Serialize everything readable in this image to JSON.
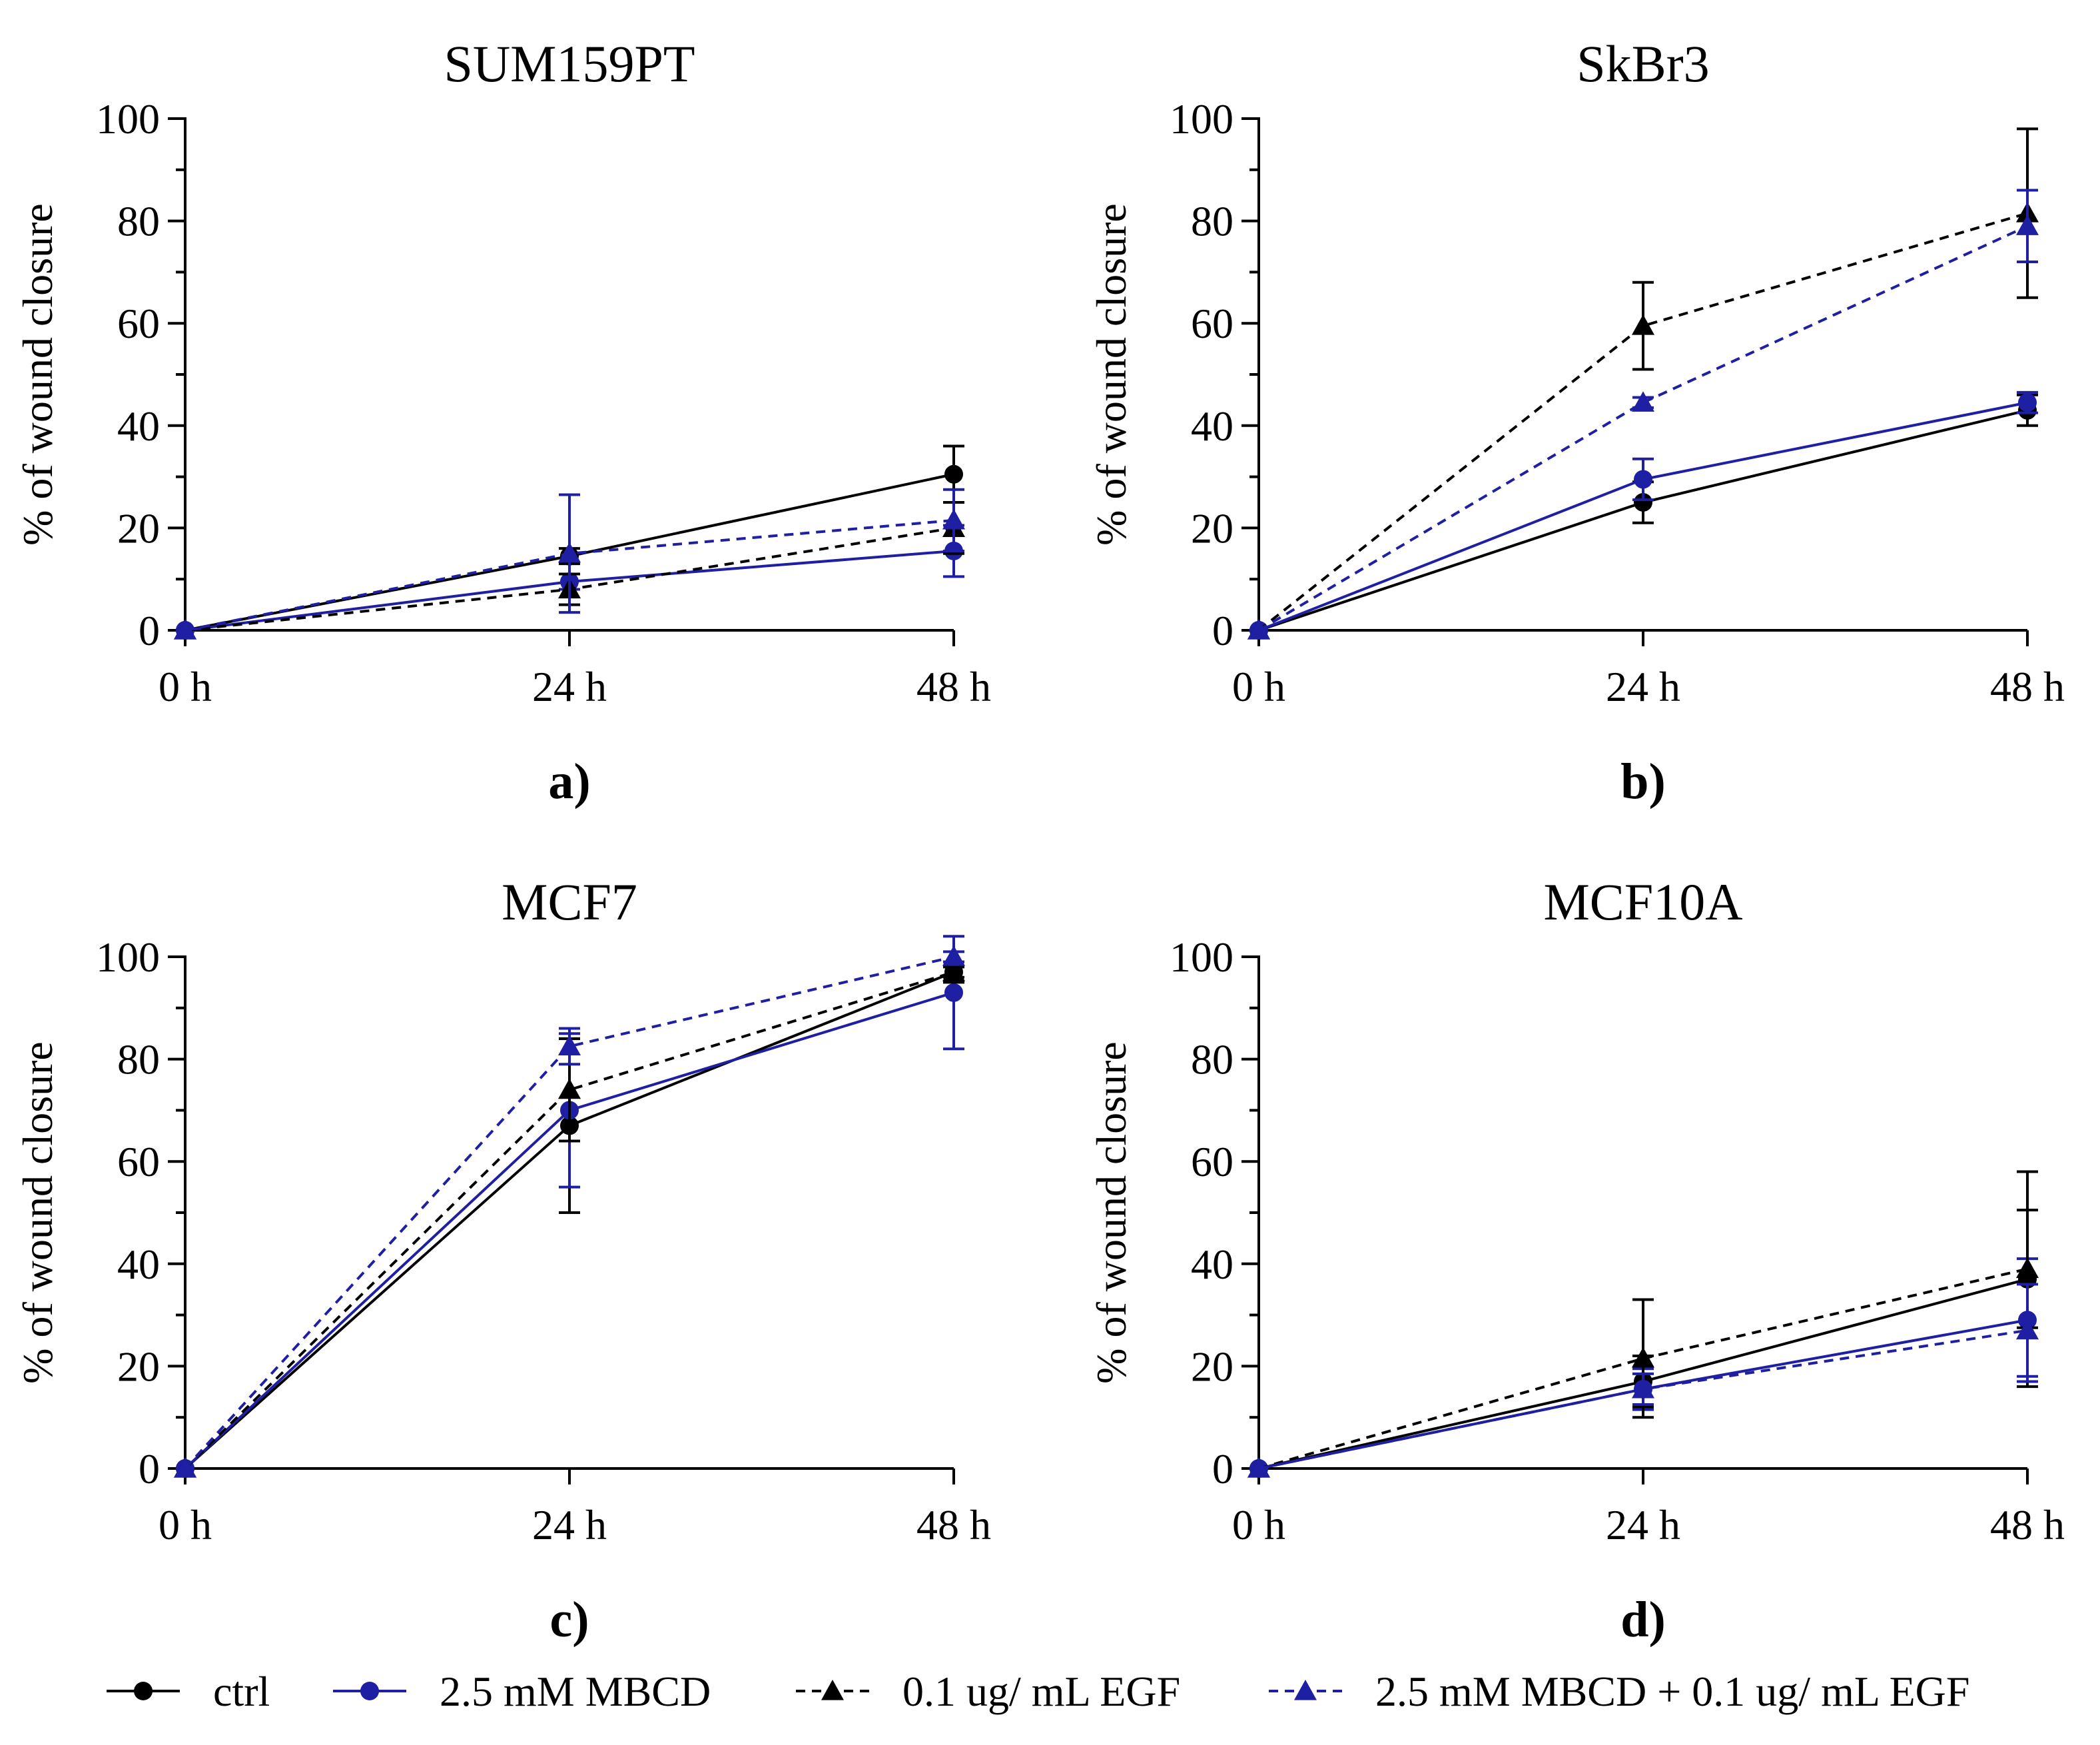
{
  "series_styles": [
    {
      "color": "#000000",
      "marker": "circle",
      "dashed": false
    },
    {
      "color": "#1f1fa3",
      "marker": "circle",
      "dashed": false
    },
    {
      "color": "#000000",
      "marker": "triangle",
      "dashed": true
    },
    {
      "color": "#1f1fa3",
      "marker": "triangle",
      "dashed": true
    }
  ],
  "legend": [
    "ctrl",
    "2.5 mM MBCD",
    "0.1 ug/ mL EGF",
    "2.5 mM MBCD + 0.1 ug/ mL EGF"
  ],
  "chart_data": [
    {
      "type": "line",
      "title": "SUM159PT",
      "panel_label": "a)",
      "xlabel": "",
      "ylabel": "% of wound closure",
      "categories": [
        "0 h",
        "24 h",
        "48 h"
      ],
      "yticks": [
        "0",
        "20",
        "40",
        "60",
        "80",
        "100"
      ],
      "ylim": [
        0,
        100
      ],
      "series": [
        {
          "name": "ctrl",
          "values": [
            0,
            14.5,
            30.5
          ],
          "errors": [
            0,
            1.5,
            5.5
          ]
        },
        {
          "name": "2.5 mM MBCD",
          "values": [
            0,
            9.5,
            15.5
          ],
          "errors": [
            0,
            1.5,
            5
          ]
        },
        {
          "name": "0.1 ug/ mL EGF",
          "values": [
            0,
            8,
            20
          ],
          "errors": [
            0,
            3,
            5
          ]
        },
        {
          "name": "2.5 mM MBCD + 0.1 ug/ mL EGF",
          "values": [
            0,
            15,
            21.5
          ],
          "errors": [
            0,
            11.5,
            6
          ]
        }
      ]
    },
    {
      "type": "line",
      "title": "SkBr3",
      "panel_label": "b)",
      "xlabel": "",
      "ylabel": "% of wound closure",
      "categories": [
        "0 h",
        "24 h",
        "48 h"
      ],
      "yticks": [
        "0",
        "20",
        "40",
        "60",
        "80",
        "100"
      ],
      "ylim": [
        0,
        100
      ],
      "series": [
        {
          "name": "ctrl",
          "values": [
            0,
            25,
            43
          ],
          "errors": [
            0,
            4,
            3
          ]
        },
        {
          "name": "2.5 mM MBCD",
          "values": [
            0,
            29.5,
            44.5
          ],
          "errors": [
            0,
            4,
            2
          ]
        },
        {
          "name": "0.1 ug/ mL EGF",
          "values": [
            0,
            59.5,
            81.5
          ],
          "errors": [
            0,
            8.5,
            16.5
          ]
        },
        {
          "name": "2.5 mM MBCD + 0.1 ug/ mL EGF",
          "values": [
            0,
            44.5,
            79
          ],
          "errors": [
            0,
            1,
            7
          ]
        }
      ]
    },
    {
      "type": "line",
      "title": "MCF7",
      "panel_label": "c)",
      "xlabel": "",
      "ylabel": "% of wound closure",
      "categories": [
        "0 h",
        "24 h",
        "48 h"
      ],
      "yticks": [
        "0",
        "20",
        "40",
        "60",
        "80",
        "100"
      ],
      "ylim": [
        0,
        100
      ],
      "series": [
        {
          "name": "ctrl",
          "values": [
            0,
            67,
            97
          ],
          "errors": [
            0,
            17,
            1
          ]
        },
        {
          "name": "2.5 mM MBCD",
          "values": [
            0,
            70,
            93
          ],
          "errors": [
            0,
            15,
            11
          ]
        },
        {
          "name": "0.1 ug/ mL EGF",
          "values": [
            0,
            74,
            97
          ],
          "errors": [
            0,
            10,
            2
          ]
        },
        {
          "name": "2.5 mM MBCD + 0.1 ug/ mL EGF",
          "values": [
            0,
            82.5,
            100
          ],
          "errors": [
            0,
            3.5,
            1
          ]
        }
      ]
    },
    {
      "type": "line",
      "title": "MCF10A",
      "panel_label": "d)",
      "xlabel": "",
      "ylabel": "% of wound closure",
      "categories": [
        "0 h",
        "24 h",
        "48 h"
      ],
      "yticks": [
        "0",
        "20",
        "40",
        "60",
        "80",
        "100"
      ],
      "ylim": [
        0,
        100
      ],
      "series": [
        {
          "name": "ctrl",
          "values": [
            0,
            17,
            37
          ],
          "errors": [
            0,
            5,
            21
          ]
        },
        {
          "name": "2.5 mM MBCD",
          "values": [
            0,
            15.5,
            29
          ],
          "errors": [
            0,
            4,
            12
          ]
        },
        {
          "name": "0.1 ug/ mL EGF",
          "values": [
            0,
            21.5,
            39
          ],
          "errors": [
            0,
            11.5,
            11.5
          ]
        },
        {
          "name": "2.5 mM MBCD + 0.1 ug/ mL EGF",
          "values": [
            0,
            15.5,
            27
          ],
          "errors": [
            0,
            3,
            9
          ]
        }
      ]
    }
  ]
}
